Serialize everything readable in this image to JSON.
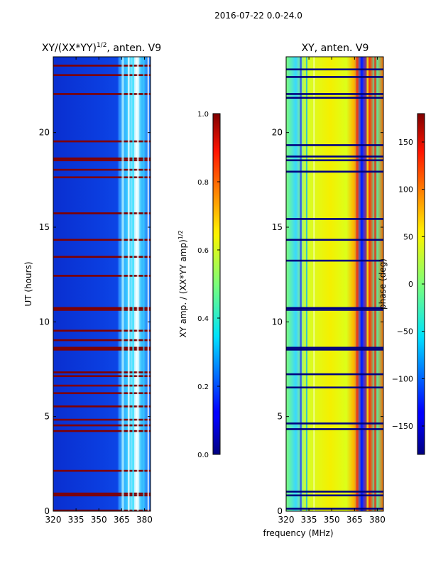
{
  "figure_title": "2016-07-22 0.0-24.0",
  "xlabel": "frequency (MHz)",
  "colors": {
    "background": "#00007f",
    "flag_red": "#7f0000",
    "axis": "#000000"
  },
  "chart_data": [
    {
      "type": "heatmap",
      "title": "XY/(XX*YY)",
      "title_sup": "1/2",
      "title_suffix": ", anten. V9",
      "xlabel": "",
      "ylabel": "UT (hours)",
      "xlim": [
        320,
        384
      ],
      "ylim": [
        0,
        24
      ],
      "xticks": [
        320,
        335,
        350,
        365,
        380
      ],
      "yticks": [
        0,
        5,
        10,
        15,
        20
      ],
      "colorbar": {
        "label": "XY amp. / (XX*YY amp)",
        "label_sup": "1/2",
        "range": [
          0.0,
          1.0
        ],
        "ticks": [
          "0.0",
          "0.2",
          "0.4",
          "0.6",
          "0.8",
          "1.0"
        ],
        "colormap": "jet"
      },
      "flagged_hours": [
        0.0,
        0.8,
        0.9,
        2.1,
        4.2,
        4.5,
        4.8,
        5.5,
        6.2,
        6.6,
        7.1,
        7.3,
        8.5,
        8.6,
        9.0,
        9.5,
        10.6,
        10.7,
        12.4,
        13.4,
        14.3,
        15.7,
        17.6,
        18.0,
        18.5,
        18.6,
        19.5,
        22.0,
        23.0,
        23.5
      ],
      "value_description": "low amplitude (~0.1) at 320-363 MHz; 0.3-0.6 at 363-384 MHz; red bands are flagged times"
    },
    {
      "type": "heatmap",
      "title": "XY, anten. V9",
      "xlabel": "",
      "ylabel": "",
      "xlim": [
        320,
        384
      ],
      "ylim": [
        0,
        24
      ],
      "xticks": [
        320,
        335,
        350,
        365,
        380
      ],
      "yticks": [
        0,
        5,
        10,
        15,
        20
      ],
      "colorbar": {
        "label": "phase (deg)",
        "range": [
          -180,
          180
        ],
        "ticks": [
          "−150",
          "−100",
          "−50",
          "0",
          "50",
          "100",
          "150"
        ],
        "tick_values": [
          -150,
          -100,
          -50,
          0,
          50,
          100,
          150
        ],
        "colormap": "jet"
      },
      "flagged_hours": [
        0.1,
        0.8,
        1.0,
        4.3,
        4.6,
        6.5,
        7.2,
        8.5,
        8.6,
        10.6,
        10.7,
        13.2,
        14.3,
        15.4,
        17.9,
        18.5,
        18.7,
        19.3,
        21.8,
        22.0,
        22.9,
        23.3
      ],
      "value_description": "phase near 0-50 deg across band with noisy structure above 360 MHz; navy bands are flagged times"
    }
  ]
}
